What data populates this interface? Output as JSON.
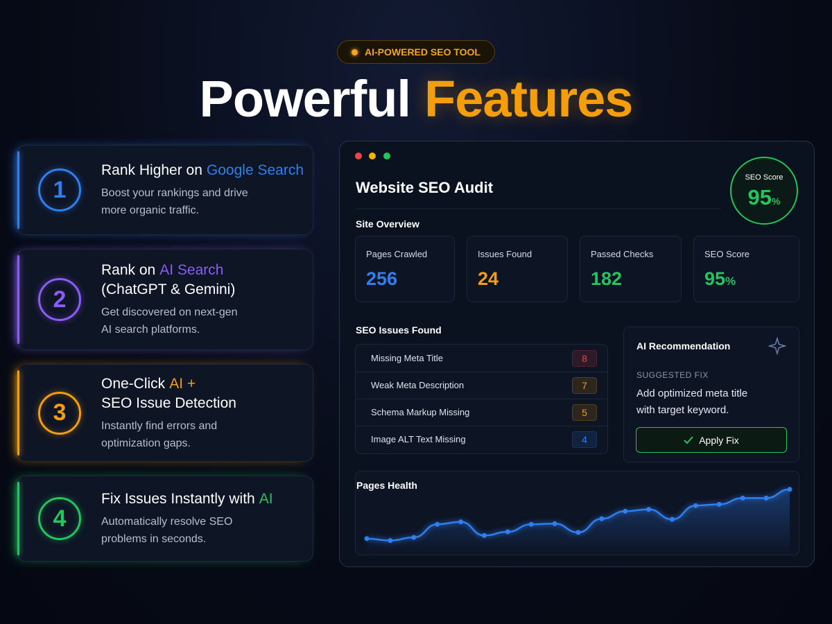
{
  "badge": "AI-POWERED SEO TOOL",
  "headline": [
    {
      "text": "Powerful"
    },
    {
      "text": "Features",
      "color": "#f59e0b"
    }
  ],
  "features": [
    {
      "number": 1,
      "color": "#2f7ff0",
      "title": [
        [
          {
            "text": "Rank Higher on"
          },
          {
            "text": "Google Search",
            "accent": true
          }
        ]
      ],
      "description": [
        "Boost your rankings and drive",
        "more organic traffic."
      ]
    },
    {
      "number": 2,
      "color": "#8b5cf6",
      "title": [
        [
          {
            "text": "Rank on"
          },
          {
            "text": "AI Search",
            "accent": true
          }
        ],
        [
          {
            "text": "(ChatGPT & Gemini)"
          }
        ]
      ],
      "description": [
        "Get discovered on next-gen",
        "AI search platforms."
      ]
    },
    {
      "number": 3,
      "color": "#f59e0b",
      "title": [
        [
          {
            "text": "One-Click"
          },
          {
            "text": "AI +",
            "accent": true
          }
        ],
        [
          {
            "text": "SEO Issue Detection"
          }
        ]
      ],
      "description": [
        "Instantly find errors and",
        "optimization gaps."
      ]
    },
    {
      "number": 4,
      "color": "#22c55e",
      "title": [
        [
          {
            "text": "Fix Issues Instantly with"
          },
          {
            "text": "AI",
            "accent": true
          }
        ]
      ],
      "description": [
        "Automatically resolve SEO",
        "problems in seconds."
      ]
    }
  ],
  "dashboard": {
    "title": "Website SEO Audit",
    "score": {
      "label": "SEO Score",
      "value": 95,
      "unit": "%"
    },
    "overview_title": "Site Overview",
    "stats": [
      {
        "label": "Pages Crawled",
        "value": 256,
        "color": "#2f7ff0"
      },
      {
        "label": "Issues Found",
        "value": 24,
        "color": "#f59e0b"
      },
      {
        "label": "Passed Checks",
        "value": 182,
        "color": "#22c55e"
      },
      {
        "label": "SEO Score",
        "value": 95,
        "unit": "%",
        "color": "#22c55e"
      }
    ],
    "issues_title": "SEO Issues Found",
    "issues": [
      {
        "label": "Missing Meta Title",
        "count": 8,
        "color": "#ef4444"
      },
      {
        "label": "Weak Meta Description",
        "count": 7,
        "color": "#f59e0b"
      },
      {
        "label": "Schema Markup Missing",
        "count": 5,
        "color": "#f59e0b"
      },
      {
        "label": "Image ALT Text Missing",
        "count": 4,
        "color": "#2f7ff0"
      }
    ],
    "recommendation": {
      "title": "AI Recommendation",
      "subtitle": "SUGGESTED FIX",
      "text": [
        "Add optimized meta title",
        "with target keyword."
      ],
      "button": "Apply Fix"
    },
    "health": {
      "title": "Pages Health",
      "type": "line",
      "color": "#2f7ff0",
      "ylim": [
        0,
        100
      ],
      "values": [
        19,
        16,
        21,
        42,
        46,
        24,
        30,
        42,
        43,
        29,
        51,
        63,
        66,
        50,
        72,
        74,
        84,
        84,
        98
      ]
    }
  }
}
